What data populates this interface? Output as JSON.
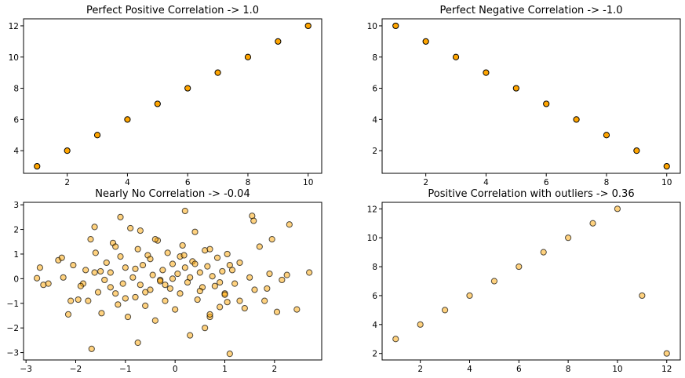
{
  "colors": {
    "marker_fill": "#FFA500",
    "marker_edge": "#000000",
    "axes_edge": "#000000",
    "background": "#ffffff"
  },
  "chart_data": [
    {
      "type": "scatter",
      "title": "Perfect Positive Correlation -> 1.0",
      "xlim": [
        0.55,
        10.45
      ],
      "ylim": [
        2.55,
        12.45
      ],
      "xticks": [
        2,
        4,
        6,
        8,
        10
      ],
      "yticks": [
        4,
        6,
        8,
        10,
        12
      ],
      "marker_alpha": 1.0,
      "x": [
        1,
        2,
        3,
        4,
        5,
        6,
        7,
        8,
        9,
        10
      ],
      "y": [
        3,
        4,
        5,
        6,
        7,
        8,
        9,
        10,
        11,
        12
      ]
    },
    {
      "type": "scatter",
      "title": "Perfect Negative Correlation -> -1.0",
      "xlim": [
        0.55,
        10.45
      ],
      "ylim": [
        0.55,
        10.45
      ],
      "xticks": [
        2,
        4,
        6,
        8,
        10
      ],
      "yticks": [
        2,
        4,
        6,
        8,
        10
      ],
      "marker_alpha": 1.0,
      "x": [
        1,
        2,
        3,
        4,
        5,
        6,
        7,
        8,
        9,
        10
      ],
      "y": [
        10,
        9,
        8,
        7,
        6,
        5,
        4,
        3,
        2,
        1
      ]
    },
    {
      "type": "scatter",
      "title": "Nearly No Correlation -> -0.04",
      "xlim": [
        -3.05,
        2.95
      ],
      "ylim": [
        -3.3,
        3.1
      ],
      "xticks": [
        -3,
        -2,
        -1,
        0,
        1,
        2
      ],
      "yticks": [
        -3,
        -2,
        -1,
        0,
        1,
        2,
        3
      ],
      "marker_alpha": 0.5,
      "x": [
        -2.78,
        -2.65,
        -2.72,
        -2.55,
        -2.35,
        -2.28,
        -2.25,
        -2.15,
        -2.1,
        -2.05,
        -1.95,
        -1.85,
        -1.8,
        -1.75,
        -1.7,
        -1.68,
        -1.62,
        -1.6,
        -1.55,
        -1.5,
        -1.48,
        -1.42,
        -1.38,
        -1.3,
        -1.25,
        -1.2,
        -1.15,
        -1.1,
        -1.05,
        -1.0,
        -0.95,
        -0.9,
        -0.85,
        -0.8,
        -0.75,
        -0.7,
        -0.65,
        -0.6,
        -0.55,
        -0.5,
        -0.45,
        -0.4,
        -0.35,
        -0.3,
        -0.25,
        -0.2,
        -0.15,
        -0.1,
        -0.05,
        0.0,
        0.05,
        0.1,
        0.15,
        0.2,
        0.25,
        0.3,
        0.35,
        0.4,
        0.45,
        0.5,
        0.55,
        0.6,
        0.65,
        0.7,
        0.75,
        0.8,
        0.85,
        0.9,
        0.95,
        1.0,
        1.05,
        1.1,
        1.15,
        1.2,
        1.3,
        1.4,
        1.5,
        1.55,
        1.6,
        1.7,
        1.8,
        1.9,
        1.95,
        2.05,
        2.15,
        2.25,
        2.3,
        2.45,
        2.7,
        -1.2,
        -1.0,
        -0.8,
        -0.6,
        -0.4,
        -0.2,
        0.1,
        0.3,
        0.5,
        0.7,
        0.9,
        1.1,
        1.3,
        -1.1,
        -0.7,
        -0.3,
        0.2,
        0.6,
        1.0,
        -1.62,
        1.05,
        0.18,
        -0.75,
        1.58,
        0.7,
        -1.3,
        -0.05,
        0.4,
        1.85,
        -1.9,
        -0.5
      ],
      "y": [
        0.02,
        -0.25,
        0.45,
        -0.2,
        0.75,
        0.85,
        0.05,
        -1.45,
        -0.9,
        0.55,
        -0.85,
        -0.2,
        0.35,
        -0.9,
        1.6,
        -2.85,
        0.25,
        1.05,
        -0.55,
        0.3,
        -1.4,
        -0.05,
        0.65,
        -0.35,
        1.45,
        -0.6,
        -1.05,
        0.9,
        -0.2,
        0.45,
        -1.55,
        2.05,
        0.05,
        -0.75,
        1.2,
        -0.25,
        0.55,
        -1.1,
        0.95,
        -0.45,
        0.15,
        -1.7,
        1.55,
        -0.05,
        0.35,
        -0.9,
        1.05,
        -0.4,
        0.6,
        -1.25,
        0.2,
        -0.6,
        1.35,
        0.45,
        -0.15,
        -2.3,
        0.7,
        1.9,
        -0.85,
        0.25,
        -0.35,
        1.15,
        0.5,
        -1.55,
        0.1,
        -0.3,
        0.85,
        -1.15,
        0.3,
        -0.6,
        1.0,
        -3.05,
        0.35,
        -0.2,
        0.65,
        -1.2,
        0.05,
        2.55,
        -0.45,
        1.3,
        -0.9,
        0.2,
        1.6,
        -1.35,
        -0.05,
        0.15,
        2.2,
        -1.25,
        0.25,
        1.3,
        -0.8,
        0.4,
        -0.55,
        1.6,
        -0.25,
        0.9,
        0.05,
        -0.5,
        1.2,
        -0.15,
        0.55,
        -0.9,
        2.5,
        1.95,
        -0.1,
        2.75,
        -2.0,
        -0.65,
        2.1,
        -0.95,
        0.95,
        -2.6,
        2.35,
        -1.45,
        0.25,
        0.0,
        0.6,
        -0.4,
        -0.3,
        0.8
      ]
    },
    {
      "type": "scatter",
      "title": "Positive Correlation with outliers -> 0.36",
      "xlim": [
        0.45,
        12.55
      ],
      "ylim": [
        1.55,
        12.45
      ],
      "xticks": [
        2,
        4,
        6,
        8,
        10,
        12
      ],
      "yticks": [
        2,
        4,
        6,
        8,
        10,
        12
      ],
      "marker_alpha": 0.5,
      "x": [
        1,
        2,
        3,
        4,
        5,
        6,
        7,
        8,
        9,
        10,
        11,
        12
      ],
      "y": [
        3,
        4,
        5,
        6,
        7,
        8,
        9,
        10,
        11,
        12,
        6,
        2
      ]
    }
  ]
}
